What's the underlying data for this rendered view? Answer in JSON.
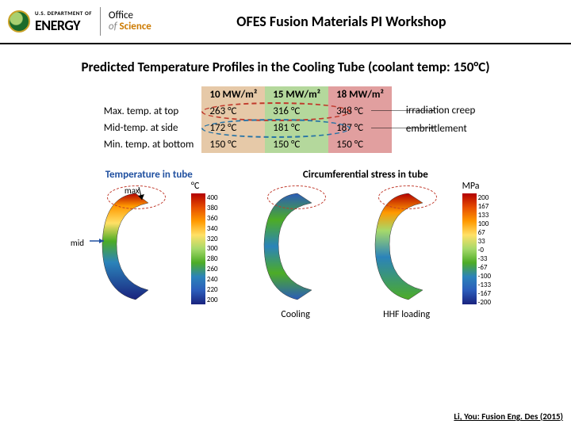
{
  "header": {
    "dept_small": "U.S. DEPARTMENT OF",
    "dept_big": "ENERGY",
    "office_of": "Office",
    "office_of2": "of",
    "office_name": "Science",
    "title": "OFES Fusion Materials PI Workshop"
  },
  "slide_title": "Predicted Temperature Profiles in the Cooling Tube (coolant temp: 150°C)",
  "table": {
    "header_blank": "",
    "col1": "10 MW/m²",
    "col2": "15 MW/m²",
    "col3": "18 MW/m²",
    "rows": [
      {
        "label": "Max. temp. at top",
        "c1": "263 °C",
        "c2": "316 °C",
        "c3": "348 °C"
      },
      {
        "label": "Mid-temp. at side",
        "c1": "172 °C",
        "c2": "181 °C",
        "c3": "187 °C"
      },
      {
        "label": "Min. temp. at bottom",
        "c1": "150 °C",
        "c2": "150 °C",
        "c3": "150 °C"
      }
    ],
    "col_colors": {
      "c1": "#e6c9a8",
      "c2": "#b4d89c",
      "c3": "#e19f9f"
    }
  },
  "annotations": {
    "line1": "irradiation creep",
    "line2": "embrittlement"
  },
  "figures": {
    "left_title": "Temperature in tube",
    "right_title": "Circumferential stress in tube",
    "max_label": "max",
    "mid_label": "mid",
    "temp_unit": "°C",
    "temp_ticks": [
      "400",
      "380",
      "360",
      "340",
      "320",
      "300",
      "280",
      "260",
      "240",
      "220",
      "200"
    ],
    "stress_unit": "MPa",
    "stress_ticks": [
      "200",
      "167",
      "133",
      "100",
      "67",
      "33",
      "-0",
      "-33",
      "-67",
      "-100",
      "-133",
      "-167",
      "-200"
    ],
    "cooling_label": "Cooling",
    "hhf_label": "HHF loading"
  },
  "colorbar_temp_gradient": [
    "#b30000",
    "#e64d00",
    "#ff9900",
    "#ffe066",
    "#a6d96a",
    "#4dac26",
    "#2b83ba",
    "#2b5cba",
    "#1a237e"
  ],
  "colorbar_stress_gradient": [
    "#b30000",
    "#e64d00",
    "#ff9900",
    "#ffe066",
    "#a6d96a",
    "#4dac26",
    "#2b83ba",
    "#2b5cba",
    "#1a237e"
  ],
  "citation": "Li, You: Fusion Eng. Des (2015)"
}
